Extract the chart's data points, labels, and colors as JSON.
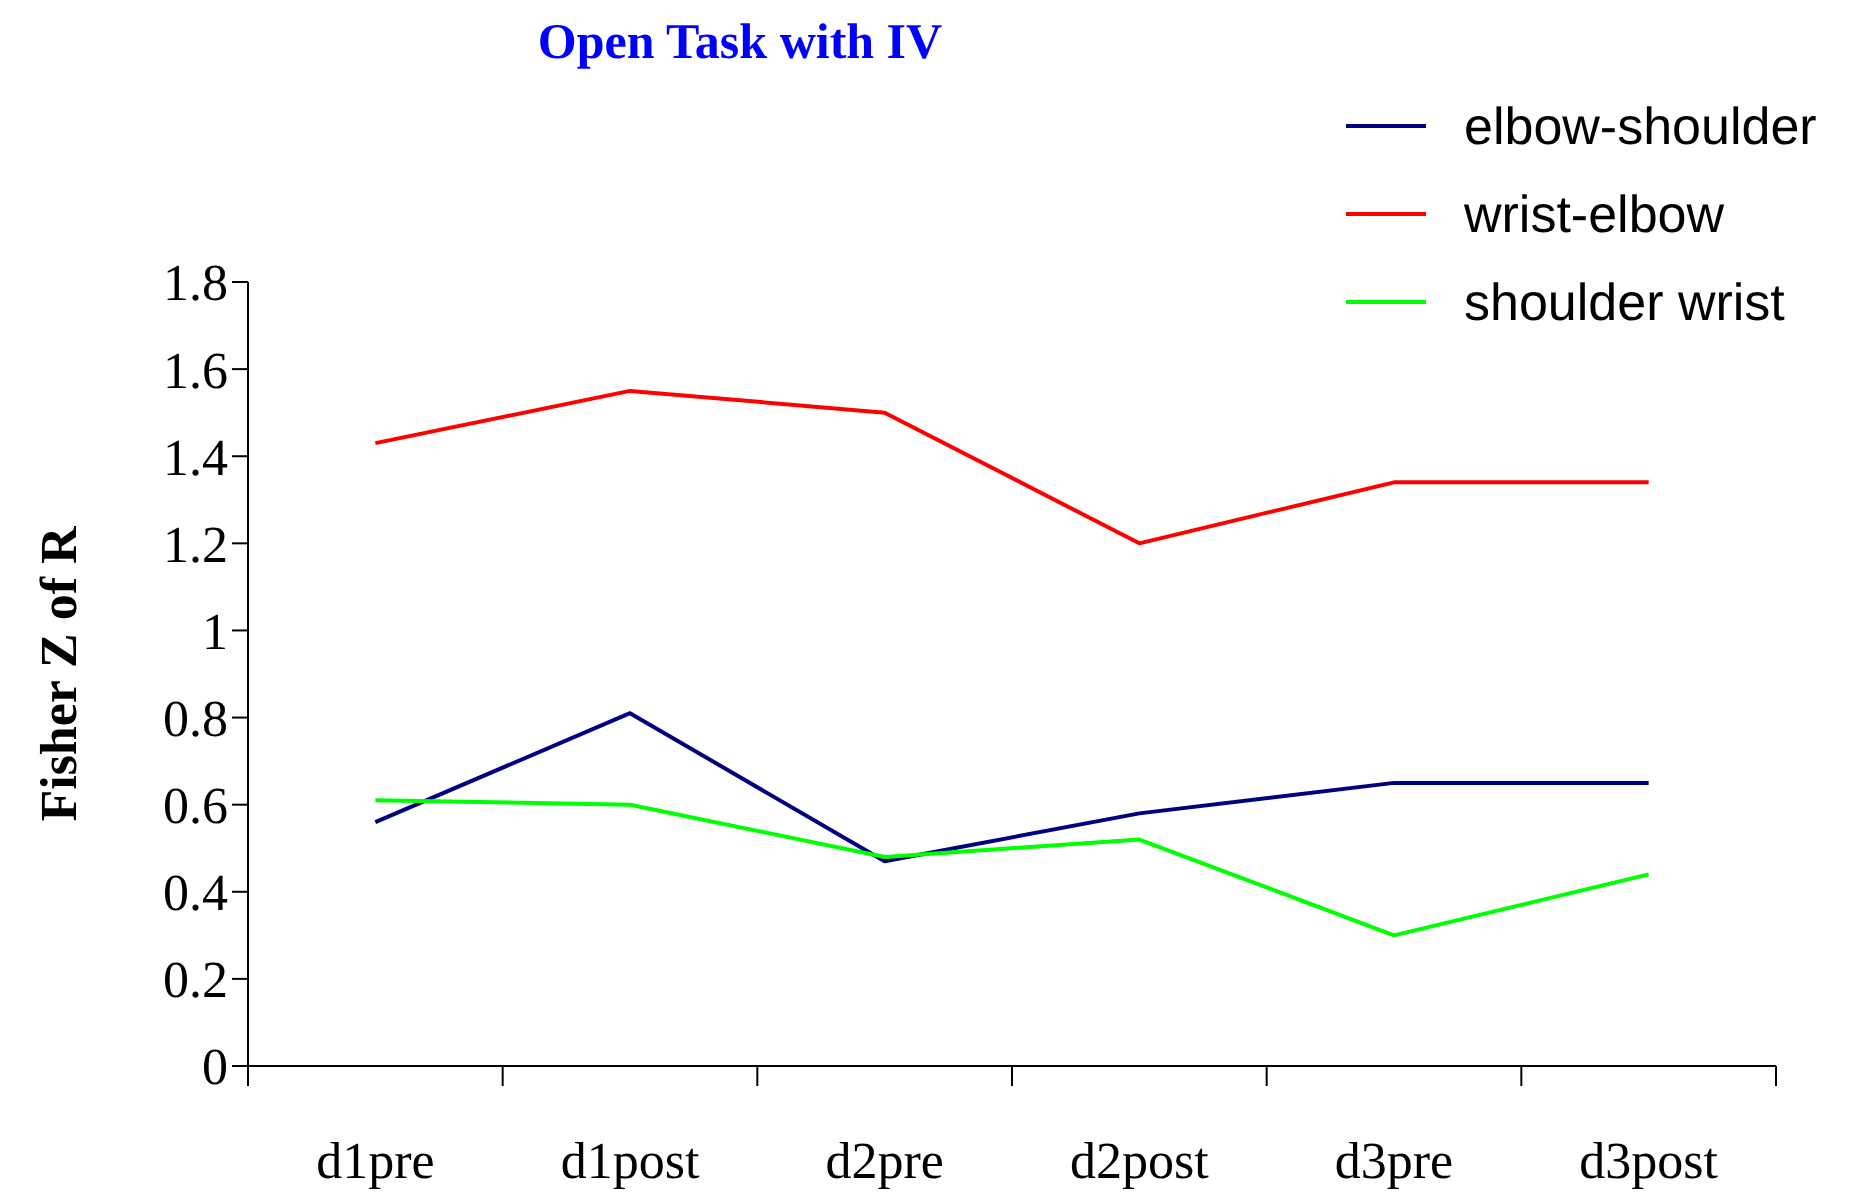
{
  "chart_data": {
    "type": "line",
    "title": "Open Task with IV",
    "ylabel": "Fisher Z of R",
    "categories": [
      "d1pre",
      "d1post",
      "d2pre",
      "d2post",
      "d3pre",
      "d3post"
    ],
    "series": [
      {
        "name": "elbow-shoulder",
        "color": "#000080",
        "values": [
          0.56,
          0.81,
          0.47,
          0.58,
          0.65,
          0.65
        ]
      },
      {
        "name": "wrist-elbow",
        "color": "#ff0000",
        "values": [
          1.43,
          1.55,
          1.5,
          1.2,
          1.34,
          1.34
        ]
      },
      {
        "name": "shoulder wrist",
        "color": "#00ff00",
        "values": [
          0.61,
          0.6,
          0.48,
          0.52,
          0.3,
          0.44
        ]
      }
    ],
    "ylim": [
      0,
      1.8
    ],
    "yticks": [
      0,
      0.2,
      0.4,
      0.6,
      0.8,
      1,
      1.2,
      1.4,
      1.6,
      1.8
    ],
    "grid": false,
    "legend": "top right",
    "marker": "none",
    "line_style": "solid"
  }
}
